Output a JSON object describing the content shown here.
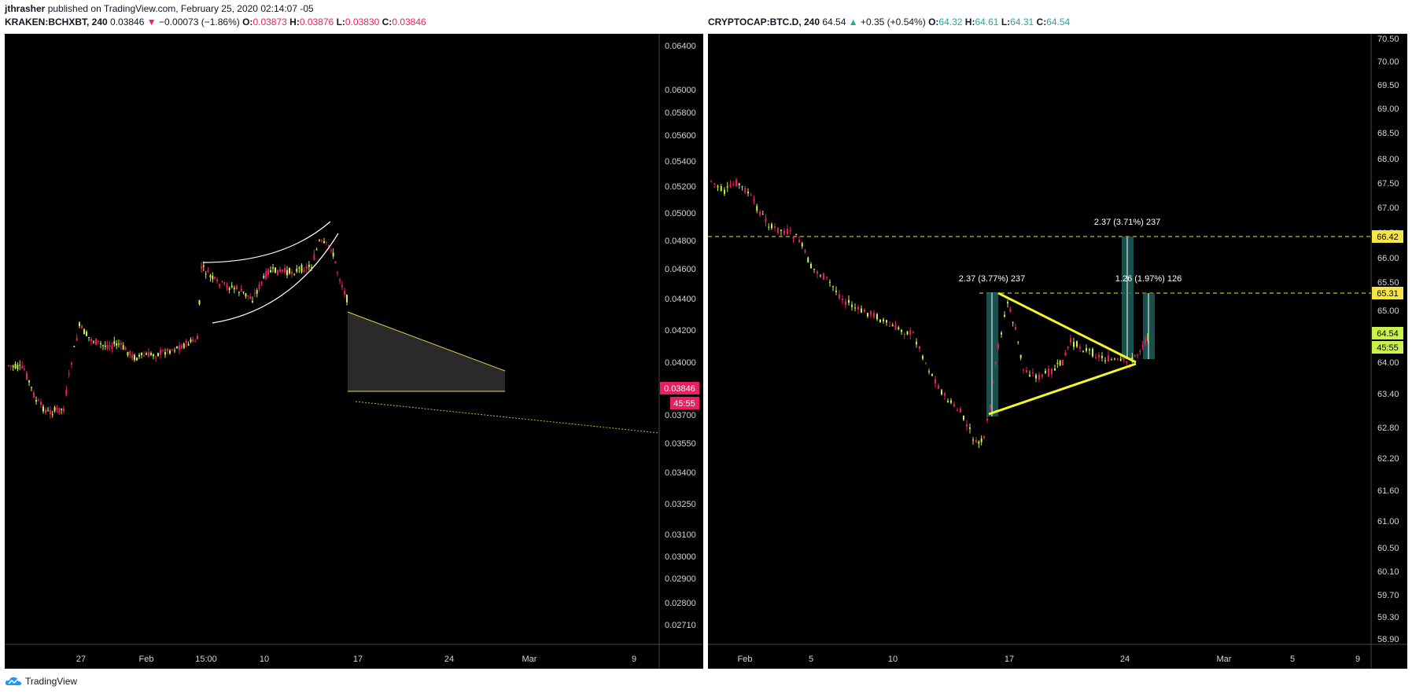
{
  "header": {
    "author": "jthrasher",
    "published": "published on TradingView.com, February 25, 2020 02:14:07 -05"
  },
  "left": {
    "symbol": "KRAKEN:BCHXBT, 240",
    "price": "0.03846",
    "change_arrow": "▼",
    "change": "−0.00073 (−1.86%)",
    "ohlc": [
      {
        "label": "O:",
        "value": "0.03873"
      },
      {
        "label": "H:",
        "value": "0.03876"
      },
      {
        "label": "L:",
        "value": "0.03830"
      },
      {
        "label": "C:",
        "value": "0.03846"
      }
    ],
    "price_ticks": [
      "0.06400",
      "0.06000",
      "0.05800",
      "0.05600",
      "0.05400",
      "0.05200",
      "0.05000",
      "0.04800",
      "0.04600",
      "0.04400",
      "0.04200",
      "0.04000",
      "0.03700",
      "0.03550",
      "0.03400",
      "0.03250",
      "0.03100",
      "0.03000",
      "0.02900",
      "0.02800",
      "0.02710"
    ],
    "date_ticks": [
      "27",
      "Feb",
      "15:00",
      "10",
      "17",
      "24",
      "Mar",
      "9"
    ],
    "last_price_label": "0.03846",
    "countdown_label": "45:55",
    "colors": {
      "up": "#c6f24a",
      "down": "#e91e63",
      "label_bg": "#e91e63"
    }
  },
  "right": {
    "symbol": "CRYPTOCAP:BTC.D, 240",
    "price": "64.54",
    "change_arrow": "▲",
    "change": "+0.35 (+0.54%)",
    "ohlc": [
      {
        "label": "O:",
        "value": "64.32"
      },
      {
        "label": "H:",
        "value": "64.61"
      },
      {
        "label": "L:",
        "value": "64.31"
      },
      {
        "label": "C:",
        "value": "64.54"
      }
    ],
    "price_ticks": [
      "70.50",
      "70.00",
      "69.50",
      "69.00",
      "68.50",
      "68.00",
      "67.50",
      "67.00",
      "66.50",
      "66.00",
      "65.50",
      "65.00",
      "64.00",
      "63.40",
      "62.80",
      "62.20",
      "61.60",
      "61.00",
      "60.50",
      "60.10",
      "59.70",
      "59.30",
      "58.90"
    ],
    "date_ticks": [
      "Feb",
      "5",
      "10",
      "17",
      "24",
      "Mar",
      "5",
      "9"
    ],
    "level_labels": [
      "66.42",
      "65.31"
    ],
    "last_price_label": "64.54",
    "countdown_label": "45:55",
    "measure_labels": [
      "2.37 (3.77%) 237",
      "2.37 (3.71%) 237",
      "1.26 (1.97%) 126"
    ],
    "colors": {
      "up": "#c6f24a",
      "down": "#e91e63",
      "level": "#f5e642",
      "triangle": "#f5f52a",
      "measure": "#2a8f8a"
    }
  },
  "footer": {
    "brand": "TradingView"
  }
}
